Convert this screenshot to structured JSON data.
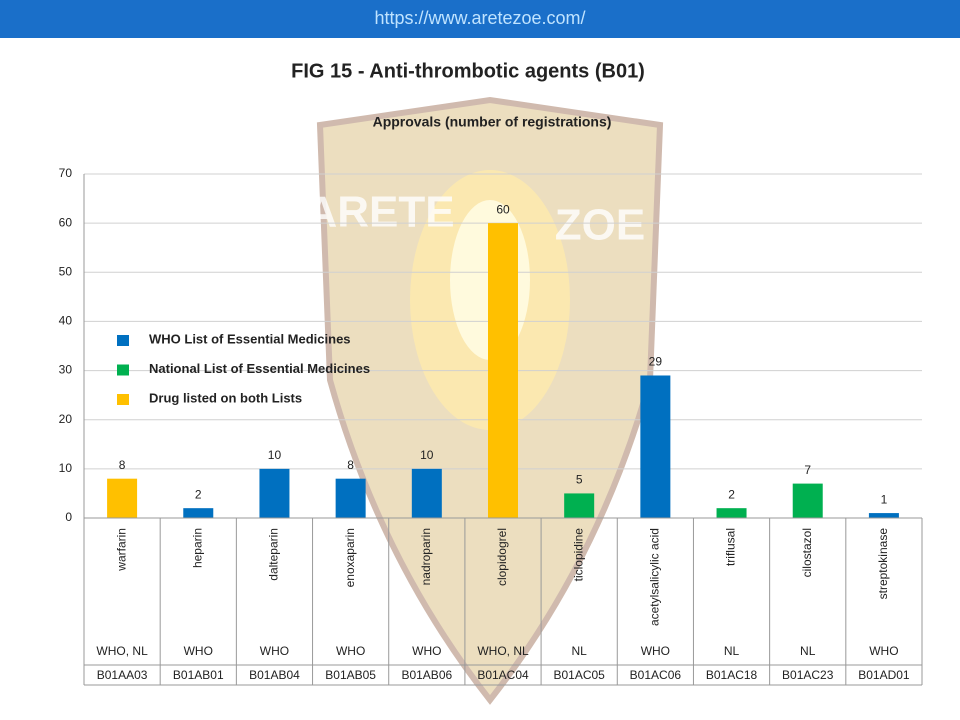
{
  "header": {
    "url": "https://www.aretezoe.com/"
  },
  "chart_data": {
    "type": "bar",
    "title": "FIG 15 - Anti-thrombotic agents (B01)",
    "subtitle": "Approvals (number of registrations)",
    "watermark": [
      "ARETE",
      "ZOE"
    ],
    "categories": [
      "warfarin",
      "heparin",
      "dalteparin",
      "enoxaparin",
      "nadroparin",
      "clopidogrel",
      "ticlopidine",
      "acetylsalicylic acid",
      "triflusal",
      "cilostazol",
      "streptokinase"
    ],
    "lists": [
      "WHO, NL",
      "WHO",
      "WHO",
      "WHO",
      "WHO",
      "WHO, NL",
      "NL",
      "WHO",
      "NL",
      "NL",
      "WHO"
    ],
    "codes": [
      "B01AA03",
      "B01AB01",
      "B01AB04",
      "B01AB05",
      "B01AB06",
      "B01AC04",
      "B01AC05",
      "B01AC06",
      "B01AC18",
      "B01AC23",
      "B01AD01"
    ],
    "values": [
      8,
      2,
      10,
      8,
      10,
      60,
      5,
      29,
      2,
      7,
      1
    ],
    "colors": [
      "#ffc000",
      "#0070c0",
      "#0070c0",
      "#0070c0",
      "#0070c0",
      "#ffc000",
      "#00b050",
      "#0070c0",
      "#00b050",
      "#00b050",
      "#0070c0"
    ],
    "legend": [
      {
        "label": "WHO List of Essential Medicines",
        "color": "#0070c0"
      },
      {
        "label": "National List of Essential Medicines",
        "color": "#00b050"
      },
      {
        "label": "Drug listed on both Lists",
        "color": "#ffc000"
      }
    ],
    "ylim": [
      0,
      70
    ],
    "yticks": [
      0,
      10,
      20,
      30,
      40,
      50,
      60,
      70
    ],
    "grid": true
  }
}
